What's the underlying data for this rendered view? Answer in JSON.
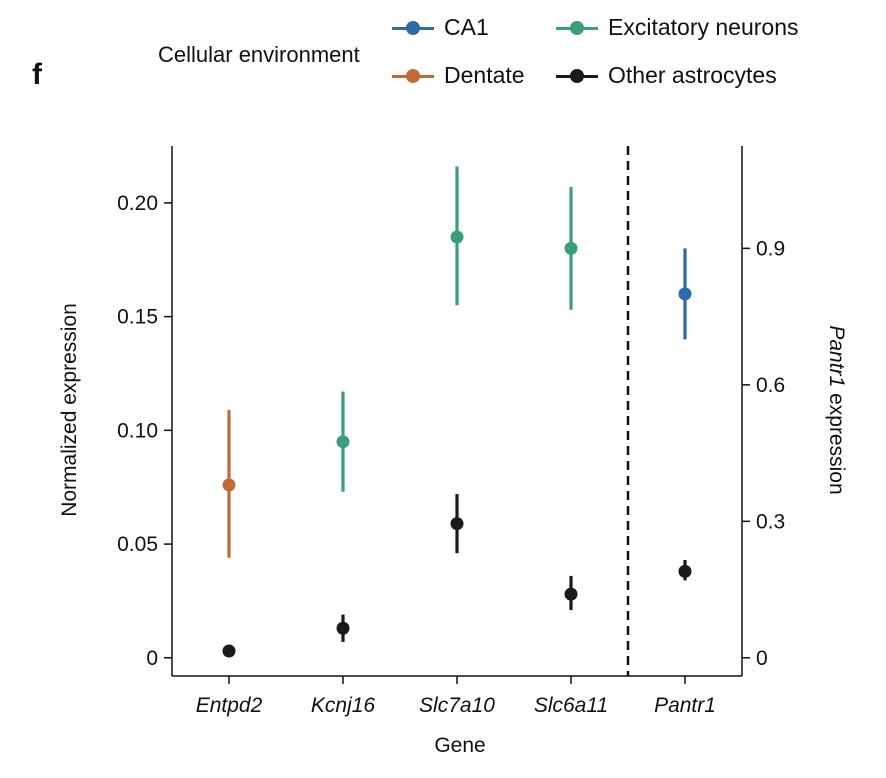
{
  "panel_letter": "f",
  "legend": {
    "title": "Cellular environment",
    "items": [
      {
        "label": "CA1",
        "color": "#2f6aa6"
      },
      {
        "label": "Excitatory neurons",
        "color": "#3a9e78"
      },
      {
        "label": "Dentate",
        "color": "#c26a35"
      },
      {
        "label": "Other astrocytes",
        "color": "#1a1a1a"
      }
    ]
  },
  "chart_data": {
    "type": "scatter",
    "xlabel": "Gene",
    "ylabel": "Normalized expression",
    "ylabel_right_italic": "Pantr1",
    "ylabel_right_rest": " expression",
    "categories": [
      "Entpd2",
      "Kcnj16",
      "Slc7a10",
      "Slc6a11",
      "Pantr1"
    ],
    "ylim": [
      -0.008,
      0.225
    ],
    "yticks": [
      0,
      0.05,
      0.1,
      0.15,
      0.2
    ],
    "ytick_labels": [
      "0",
      "0.05",
      "0.10",
      "0.15",
      "0.20"
    ],
    "ylim_right": [
      -0.04,
      1.125
    ],
    "yticks_right": [
      0,
      0.3,
      0.6,
      0.9
    ],
    "ytick_labels_right": [
      "0",
      "0.3",
      "0.6",
      "0.9"
    ],
    "divider_after_category": 3,
    "points": [
      {
        "category": "Entpd2",
        "group": "Dentate",
        "value": 0.076,
        "low": 0.044,
        "high": 0.109,
        "axis": "left"
      },
      {
        "category": "Entpd2",
        "group": "Other astrocytes",
        "value": 0.003,
        "low": 0.002,
        "high": 0.004,
        "axis": "left"
      },
      {
        "category": "Kcnj16",
        "group": "Excitatory neurons",
        "value": 0.095,
        "low": 0.073,
        "high": 0.117,
        "axis": "left"
      },
      {
        "category": "Kcnj16",
        "group": "Other astrocytes",
        "value": 0.013,
        "low": 0.007,
        "high": 0.019,
        "axis": "left"
      },
      {
        "category": "Slc7a10",
        "group": "Excitatory neurons",
        "value": 0.185,
        "low": 0.155,
        "high": 0.216,
        "axis": "left"
      },
      {
        "category": "Slc7a10",
        "group": "Other astrocytes",
        "value": 0.059,
        "low": 0.046,
        "high": 0.072,
        "axis": "left"
      },
      {
        "category": "Slc6a11",
        "group": "Excitatory neurons",
        "value": 0.18,
        "low": 0.153,
        "high": 0.207,
        "axis": "left"
      },
      {
        "category": "Slc6a11",
        "group": "Other astrocytes",
        "value": 0.028,
        "low": 0.021,
        "high": 0.036,
        "axis": "left"
      },
      {
        "category": "Pantr1",
        "group": "CA1",
        "value": 0.8,
        "low": 0.7,
        "high": 0.9,
        "axis": "right"
      },
      {
        "category": "Pantr1",
        "group": "Other astrocytes",
        "value": 0.19,
        "low": 0.17,
        "high": 0.215,
        "axis": "right"
      }
    ]
  }
}
